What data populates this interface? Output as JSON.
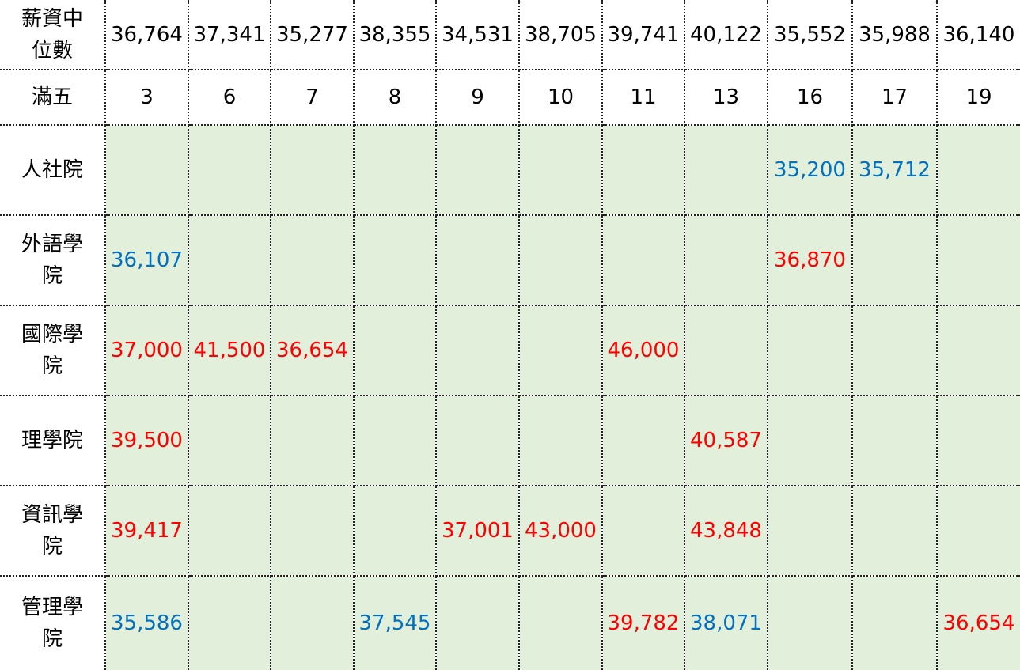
{
  "table": {
    "header_rows": [
      {
        "label": "薪資中位數",
        "values": [
          "36,764",
          "37,341",
          "35,277",
          "38,355",
          "34,531",
          "38,705",
          "39,741",
          "40,122",
          "35,552",
          "35,988",
          "36,140"
        ]
      },
      {
        "label": "滿五",
        "values": [
          "3",
          "6",
          "7",
          "8",
          "9",
          "10",
          "11",
          "13",
          "16",
          "17",
          "19"
        ]
      }
    ],
    "body_rows": [
      {
        "label": "人社院",
        "cells": [
          {
            "text": "",
            "color": "black"
          },
          {
            "text": "",
            "color": "black"
          },
          {
            "text": "",
            "color": "black"
          },
          {
            "text": "",
            "color": "black"
          },
          {
            "text": "",
            "color": "black"
          },
          {
            "text": "",
            "color": "black"
          },
          {
            "text": "",
            "color": "black"
          },
          {
            "text": "",
            "color": "black"
          },
          {
            "text": "35,200",
            "color": "blue"
          },
          {
            "text": "35,712",
            "color": "blue"
          },
          {
            "text": "",
            "color": "black"
          }
        ]
      },
      {
        "label": "外語學院",
        "cells": [
          {
            "text": "36,107",
            "color": "blue"
          },
          {
            "text": "",
            "color": "black"
          },
          {
            "text": "",
            "color": "black"
          },
          {
            "text": "",
            "color": "black"
          },
          {
            "text": "",
            "color": "black"
          },
          {
            "text": "",
            "color": "black"
          },
          {
            "text": "",
            "color": "black"
          },
          {
            "text": "",
            "color": "black"
          },
          {
            "text": "36,870",
            "color": "red"
          },
          {
            "text": "",
            "color": "black"
          },
          {
            "text": "",
            "color": "black"
          }
        ]
      },
      {
        "label": "國際學院",
        "cells": [
          {
            "text": "37,000",
            "color": "red"
          },
          {
            "text": "41,500",
            "color": "red"
          },
          {
            "text": "36,654",
            "color": "red"
          },
          {
            "text": "",
            "color": "black"
          },
          {
            "text": "",
            "color": "black"
          },
          {
            "text": "",
            "color": "black"
          },
          {
            "text": "46,000",
            "color": "red"
          },
          {
            "text": "",
            "color": "black"
          },
          {
            "text": "",
            "color": "black"
          },
          {
            "text": "",
            "color": "black"
          },
          {
            "text": "",
            "color": "black"
          }
        ]
      },
      {
        "label": "理學院",
        "cells": [
          {
            "text": "39,500",
            "color": "red"
          },
          {
            "text": "",
            "color": "black"
          },
          {
            "text": "",
            "color": "black"
          },
          {
            "text": "",
            "color": "black"
          },
          {
            "text": "",
            "color": "black"
          },
          {
            "text": "",
            "color": "black"
          },
          {
            "text": "",
            "color": "black"
          },
          {
            "text": "40,587",
            "color": "red"
          },
          {
            "text": "",
            "color": "black"
          },
          {
            "text": "",
            "color": "black"
          },
          {
            "text": "",
            "color": "black"
          }
        ]
      },
      {
        "label": "資訊學院",
        "cells": [
          {
            "text": "39,417",
            "color": "red"
          },
          {
            "text": "",
            "color": "black"
          },
          {
            "text": "",
            "color": "black"
          },
          {
            "text": "",
            "color": "black"
          },
          {
            "text": "37,001",
            "color": "red"
          },
          {
            "text": "43,000",
            "color": "red"
          },
          {
            "text": "",
            "color": "black"
          },
          {
            "text": "43,848",
            "color": "red"
          },
          {
            "text": "",
            "color": "black"
          },
          {
            "text": "",
            "color": "black"
          },
          {
            "text": "",
            "color": "black"
          }
        ]
      },
      {
        "label": "管理學院",
        "cells": [
          {
            "text": "35,586",
            "color": "blue"
          },
          {
            "text": "",
            "color": "black"
          },
          {
            "text": "",
            "color": "black"
          },
          {
            "text": "37,545",
            "color": "blue"
          },
          {
            "text": "",
            "color": "black"
          },
          {
            "text": "",
            "color": "black"
          },
          {
            "text": "39,782",
            "color": "red"
          },
          {
            "text": "38,071",
            "color": "blue"
          },
          {
            "text": "",
            "color": "black"
          },
          {
            "text": "",
            "color": "black"
          },
          {
            "text": "36,654",
            "color": "red"
          }
        ]
      }
    ],
    "colors": {
      "blue": "#0070c0",
      "red": "#ff0000",
      "cell_background": "#e2efda",
      "grid_line": "#222222"
    }
  }
}
